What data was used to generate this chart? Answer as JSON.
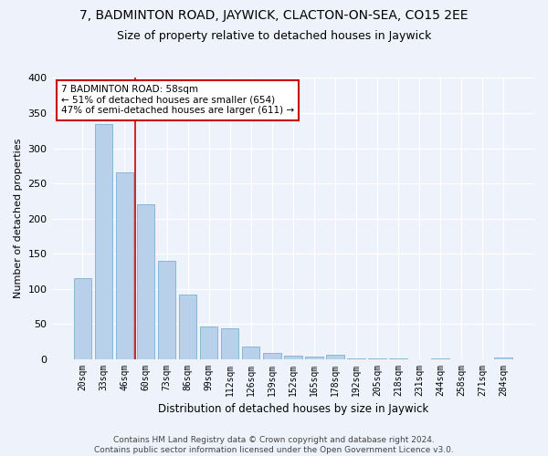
{
  "title": "7, BADMINTON ROAD, JAYWICK, CLACTON-ON-SEA, CO15 2EE",
  "subtitle": "Size of property relative to detached houses in Jaywick",
  "xlabel": "Distribution of detached houses by size in Jaywick",
  "ylabel": "Number of detached properties",
  "categories": [
    "20sqm",
    "33sqm",
    "46sqm",
    "60sqm",
    "73sqm",
    "86sqm",
    "99sqm",
    "112sqm",
    "126sqm",
    "139sqm",
    "152sqm",
    "165sqm",
    "178sqm",
    "192sqm",
    "205sqm",
    "218sqm",
    "231sqm",
    "244sqm",
    "258sqm",
    "271sqm",
    "284sqm"
  ],
  "values": [
    115,
    335,
    265,
    220,
    140,
    91,
    46,
    44,
    17,
    9,
    5,
    3,
    6,
    1,
    1,
    1,
    0,
    1,
    0,
    0,
    2
  ],
  "bar_color": "#b8d0ea",
  "bar_edge_color": "#7aafd4",
  "background_color": "#eef2fb",
  "grid_color": "#ffffff",
  "vline_x": 2.5,
  "vline_color": "#cc0000",
  "annotation_text": "7 BADMINTON ROAD: 58sqm\n← 51% of detached houses are smaller (654)\n47% of semi-detached houses are larger (611) →",
  "annotation_box_color": "#ffffff",
  "annotation_box_edge": "#cc0000",
  "footer": "Contains HM Land Registry data © Crown copyright and database right 2024.\nContains public sector information licensed under the Open Government Licence v3.0.",
  "ylim": [
    0,
    400
  ],
  "yticks": [
    0,
    50,
    100,
    150,
    200,
    250,
    300,
    350,
    400
  ],
  "title_fontsize": 10,
  "subtitle_fontsize": 9,
  "annotation_fontsize": 7.5,
  "ylabel_fontsize": 8,
  "xlabel_fontsize": 8.5,
  "tick_fontsize": 7,
  "footer_fontsize": 6.5
}
